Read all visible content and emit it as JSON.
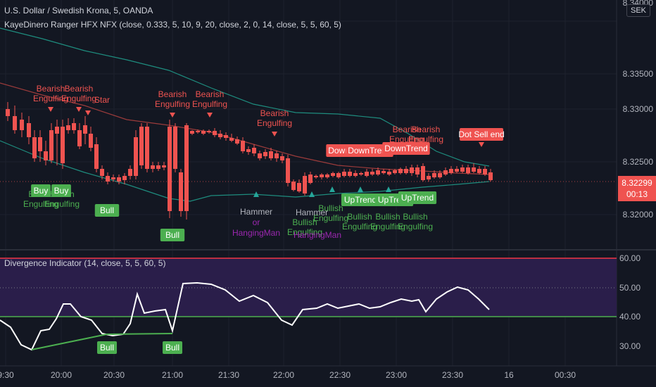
{
  "chart": {
    "symbol_line": "U.S. Dollar / Swedish Krona, 5, OANDA",
    "indicator_line": "KayeDinero Ranger HFX NFX (close, 0.333, 5, 10, 9, 20, close, 2, 0, 14, close, 5, 5, 60, 5)",
    "currency_badge": "SEK",
    "price_ticks": [
      "8.34000",
      "8.33500",
      "8.33000",
      "8.32500",
      "8.32000"
    ],
    "last_price": "8.32299",
    "countdown": "00:13"
  },
  "sub_pane": {
    "title": "Divergence Indicator (14, close, 5, 5, 60, 5)",
    "ticks": [
      "60.00",
      "50.00",
      "40.00",
      "30.00"
    ]
  },
  "time_axis": {
    "labels": [
      "9:30",
      "20:00",
      "20:30",
      "21:00",
      "21:30",
      "22:00",
      "22:30",
      "23:00",
      "23:30",
      "16",
      "00:30"
    ]
  },
  "annotations": {
    "bearish": [
      "Bearish",
      "Engulfing"
    ],
    "bullish": [
      "Bullish",
      "Engulfing"
    ],
    "bearish_star_label": "Bearish",
    "star_text": "Star",
    "hammer": "Hammer",
    "or_text": "or",
    "hanging_man": "HangingMan",
    "buy": "Buy",
    "bull": "Bull",
    "down_trend": "DownTrend",
    "up_trend": "UpTrend",
    "dot_sell": "Dot Sell",
    "dot_sell_trailing": "end"
  },
  "colors": {
    "bg": "#131722",
    "up": "#26a69a",
    "down": "#ef5350",
    "bull_label": "#4caf50",
    "hammer_text": "#9c27b0",
    "band": "#1e8c7e",
    "basis": "#9b3b3b",
    "osc_line": "#ffffff",
    "upper_level": "#f23645",
    "lower_level": "#4caf50",
    "osc_fill": "#2a1e4a"
  }
}
